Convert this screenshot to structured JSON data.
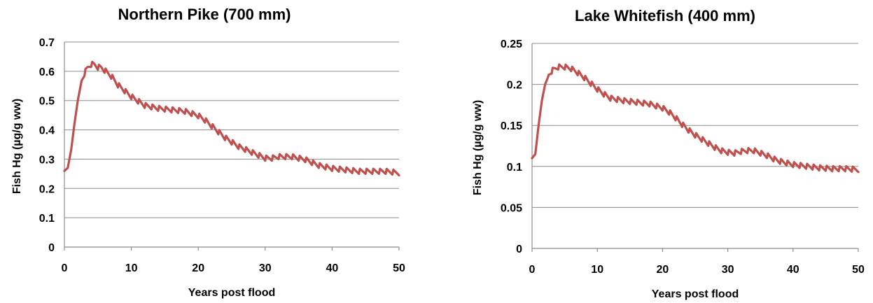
{
  "colors": {
    "series": "#c0504d"
  },
  "chart_data": [
    {
      "type": "line",
      "title": "Northern Pike (700 mm)",
      "xlabel": "Years post flood",
      "ylabel": "Fish Hg (µg/g ww)",
      "xlim": [
        0,
        50
      ],
      "ylim": [
        0,
        0.7
      ],
      "xticks": [
        0,
        10,
        20,
        30,
        40,
        50
      ],
      "xtick_labels": [
        "0",
        "10",
        "20",
        "30",
        "40",
        "50"
      ],
      "yticks": [
        0,
        0.1,
        0.2,
        0.3,
        0.4,
        0.5,
        0.6,
        0.7
      ],
      "ytick_labels": [
        "0",
        "0.1",
        "0.2",
        "0.3",
        "0.4",
        "0.5",
        "0.6",
        "0.7"
      ],
      "grid": true,
      "series": [
        {
          "x": [
            0,
            0.5,
            1,
            1.5,
            2,
            2.5,
            3,
            3.5,
            4,
            4.5,
            5,
            5.5,
            6,
            7,
            8,
            9,
            10,
            11,
            12,
            14,
            16,
            18,
            20,
            21,
            22,
            23,
            24,
            25,
            26,
            27,
            28,
            29,
            30,
            31,
            32,
            33,
            34,
            35,
            36,
            37,
            38,
            39,
            40,
            42,
            44,
            46,
            48,
            50
          ],
          "y": [
            0.26,
            0.27,
            0.33,
            0.42,
            0.5,
            0.56,
            0.59,
            0.61,
            0.62,
            0.62,
            0.61,
            0.61,
            0.6,
            0.58,
            0.55,
            0.53,
            0.51,
            0.495,
            0.48,
            0.47,
            0.465,
            0.46,
            0.445,
            0.43,
            0.41,
            0.39,
            0.37,
            0.355,
            0.34,
            0.33,
            0.32,
            0.31,
            0.3,
            0.3,
            0.305,
            0.305,
            0.305,
            0.3,
            0.295,
            0.285,
            0.275,
            0.27,
            0.265,
            0.26,
            0.255,
            0.255,
            0.255,
            0.25
          ]
        }
      ]
    },
    {
      "type": "line",
      "title": "Lake Whitefish (400 mm)",
      "xlabel": "Years post flood",
      "ylabel": "Fish Hg (µg/g ww)",
      "xlim": [
        0,
        50
      ],
      "ylim": [
        0,
        0.25
      ],
      "xticks": [
        0,
        10,
        20,
        30,
        40,
        50
      ],
      "xtick_labels": [
        "0",
        "10",
        "20",
        "30",
        "40",
        "50"
      ],
      "yticks": [
        0,
        0.05,
        0.1,
        0.15,
        0.2,
        0.25
      ],
      "ytick_labels": [
        "0",
        "0.05",
        "0.1",
        "0.15",
        "0.2",
        "0.25"
      ],
      "grid": true,
      "series": [
        {
          "x": [
            0,
            0.5,
            1,
            1.5,
            2,
            2.5,
            3,
            3.5,
            4,
            5,
            6,
            7,
            8,
            9,
            10,
            11,
            12,
            14,
            16,
            18,
            20,
            21,
            22,
            23,
            24,
            25,
            26,
            27,
            28,
            29,
            30,
            31,
            32,
            33,
            34,
            35,
            36,
            37,
            38,
            39,
            40,
            42,
            44,
            46,
            48,
            50
          ],
          "y": [
            0.11,
            0.115,
            0.15,
            0.18,
            0.2,
            0.21,
            0.215,
            0.218,
            0.22,
            0.22,
            0.218,
            0.213,
            0.207,
            0.2,
            0.193,
            0.187,
            0.182,
            0.179,
            0.177,
            0.175,
            0.17,
            0.165,
            0.158,
            0.15,
            0.143,
            0.137,
            0.132,
            0.127,
            0.122,
            0.118,
            0.116,
            0.115,
            0.117,
            0.118,
            0.118,
            0.115,
            0.112,
            0.108,
            0.105,
            0.103,
            0.101,
            0.099,
            0.097,
            0.096,
            0.096,
            0.095
          ]
        }
      ]
    }
  ]
}
